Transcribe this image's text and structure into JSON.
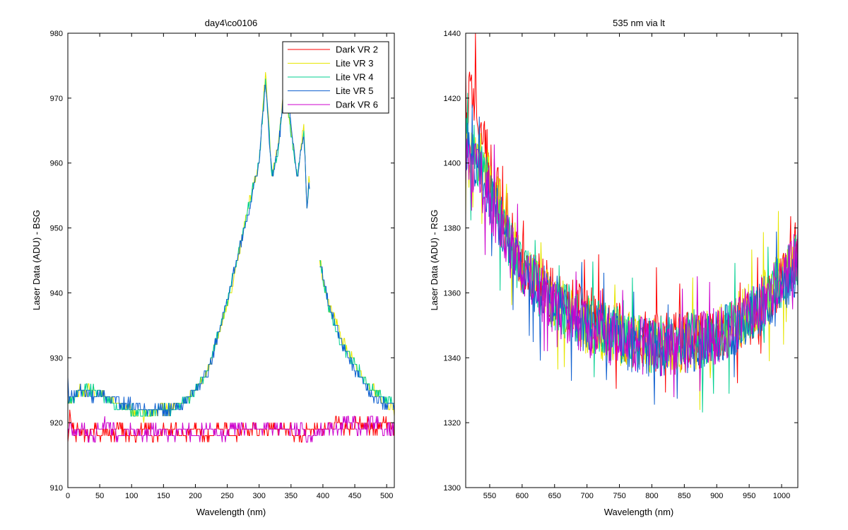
{
  "figure": {
    "background": "#ffffff"
  },
  "chart_data": [
    {
      "type": "line",
      "title": "day4\\co0106",
      "xlabel": "Wavelength (nm)",
      "ylabel": "Laser Data (ADU) - BSG",
      "xlim": [
        0,
        512
      ],
      "ylim": [
        910,
        980
      ],
      "xticks": [
        0,
        50,
        100,
        150,
        200,
        250,
        300,
        350,
        400,
        450,
        500
      ],
      "yticks": [
        910,
        920,
        930,
        940,
        950,
        960,
        970,
        980
      ],
      "grid": false,
      "legend": {
        "position": "top-right"
      },
      "series": [
        {
          "name": "Dark VR 2",
          "color": "#ff0000",
          "kind": "dark",
          "values": [
            [
              0,
              917
            ],
            [
              3,
              921
            ],
            [
              6,
              919
            ],
            [
              8,
              920
            ],
            [
              10,
              918
            ],
            [
              20,
              919
            ],
            [
              30,
              918
            ],
            [
              40,
              919
            ],
            [
              50,
              918
            ],
            [
              60,
              919
            ],
            [
              70,
              918
            ],
            [
              80,
              919
            ],
            [
              100,
              918
            ],
            [
              120,
              919
            ],
            [
              140,
              918
            ],
            [
              160,
              919
            ],
            [
              180,
              918
            ],
            [
              200,
              919
            ],
            [
              220,
              918
            ],
            [
              240,
              919
            ],
            [
              260,
              918
            ],
            [
              280,
              919
            ],
            [
              300,
              919
            ],
            [
              320,
              919
            ],
            [
              340,
              919
            ],
            [
              360,
              918
            ],
            [
              380,
              919
            ],
            [
              400,
              919
            ],
            [
              420,
              920
            ],
            [
              440,
              919
            ],
            [
              460,
              920
            ],
            [
              480,
              919
            ],
            [
              500,
              920
            ],
            [
              512,
              919
            ]
          ]
        },
        {
          "name": "Lite VR 3",
          "color": "#e6e600",
          "kind": "lite",
          "values": [
            [
              0,
              923
            ],
            [
              10,
              924
            ],
            [
              20,
              925
            ],
            [
              40,
              925
            ],
            [
              60,
              924
            ],
            [
              80,
              923
            ],
            [
              100,
              922
            ],
            [
              120,
              921
            ],
            [
              140,
              922
            ],
            [
              160,
              922
            ],
            [
              180,
              923
            ],
            [
              200,
              925
            ],
            [
              220,
              928
            ],
            [
              240,
              935
            ],
            [
              260,
              942
            ],
            [
              280,
              952
            ],
            [
              300,
              960
            ],
            [
              310,
              974
            ],
            [
              320,
              958
            ],
            [
              330,
              963
            ],
            [
              340,
              972
            ],
            [
              350,
              965
            ],
            [
              360,
              958
            ],
            [
              370,
              966
            ],
            [
              375,
              953
            ],
            [
              378,
              957
            ],
            [
              395,
              945
            ],
            [
              410,
              938
            ],
            [
              430,
              933
            ],
            [
              450,
              929
            ],
            [
              470,
              926
            ],
            [
              490,
              924
            ],
            [
              512,
              922
            ]
          ]
        },
        {
          "name": "Lite VR 4",
          "color": "#00d090",
          "kind": "lite",
          "values": [
            [
              0,
              923
            ],
            [
              10,
              924
            ],
            [
              20,
              925
            ],
            [
              40,
              925
            ],
            [
              60,
              924
            ],
            [
              80,
              922
            ],
            [
              100,
              922
            ],
            [
              120,
              921
            ],
            [
              140,
              922
            ],
            [
              160,
              922
            ],
            [
              180,
              923
            ],
            [
              200,
              925
            ],
            [
              220,
              928
            ],
            [
              240,
              935
            ],
            [
              260,
              943
            ],
            [
              280,
              952
            ],
            [
              300,
              960
            ],
            [
              310,
              973
            ],
            [
              320,
              958
            ],
            [
              330,
              962
            ],
            [
              340,
              972
            ],
            [
              350,
              965
            ],
            [
              360,
              958
            ],
            [
              370,
              965
            ],
            [
              375,
              953
            ],
            [
              378,
              957
            ],
            [
              395,
              945
            ],
            [
              410,
              937
            ],
            [
              430,
              932
            ],
            [
              450,
              929
            ],
            [
              470,
              926
            ],
            [
              490,
              924
            ],
            [
              512,
              923
            ]
          ]
        },
        {
          "name": "Lite VR 5",
          "color": "#1060d0",
          "kind": "lite",
          "values": [
            [
              0,
              927
            ],
            [
              2,
              924
            ],
            [
              10,
              924
            ],
            [
              20,
              925
            ],
            [
              40,
              924
            ],
            [
              60,
              924
            ],
            [
              80,
              923
            ],
            [
              100,
              923
            ],
            [
              120,
              922
            ],
            [
              140,
              922
            ],
            [
              160,
              922
            ],
            [
              180,
              923
            ],
            [
              200,
              925
            ],
            [
              220,
              928
            ],
            [
              240,
              935
            ],
            [
              260,
              943
            ],
            [
              280,
              951
            ],
            [
              300,
              960
            ],
            [
              310,
              973
            ],
            [
              320,
              958
            ],
            [
              330,
              962
            ],
            [
              340,
              972
            ],
            [
              350,
              966
            ],
            [
              360,
              958
            ],
            [
              370,
              965
            ],
            [
              375,
              953
            ],
            [
              378,
              957
            ],
            [
              395,
              945
            ],
            [
              410,
              938
            ],
            [
              430,
              932
            ],
            [
              450,
              928
            ],
            [
              470,
              925
            ],
            [
              490,
              923
            ],
            [
              512,
              923
            ]
          ]
        },
        {
          "name": "Dark VR 6",
          "color": "#cc00cc",
          "kind": "dark",
          "values": [
            [
              0,
              918
            ],
            [
              3,
              920
            ],
            [
              6,
              919
            ],
            [
              10,
              918
            ],
            [
              20,
              919
            ],
            [
              40,
              918
            ],
            [
              60,
              920
            ],
            [
              80,
              918
            ],
            [
              100,
              919
            ],
            [
              120,
              918
            ],
            [
              140,
              919
            ],
            [
              160,
              918
            ],
            [
              180,
              919
            ],
            [
              200,
              918
            ],
            [
              220,
              919
            ],
            [
              240,
              918
            ],
            [
              260,
              919
            ],
            [
              280,
              919
            ],
            [
              300,
              919
            ],
            [
              320,
              919
            ],
            [
              340,
              919
            ],
            [
              360,
              919
            ],
            [
              380,
              918
            ],
            [
              400,
              919
            ],
            [
              420,
              919
            ],
            [
              440,
              920
            ],
            [
              460,
              919
            ],
            [
              480,
              920
            ],
            [
              500,
              919
            ],
            [
              512,
              919
            ]
          ]
        }
      ]
    },
    {
      "type": "line",
      "title": "535 nm via lt",
      "xlabel": "Wavelength (nm)",
      "ylabel": "Laser Data (ADU) - RSG",
      "xlim": [
        513,
        1025
      ],
      "ylim": [
        1300,
        1440
      ],
      "xticks": [
        550,
        600,
        650,
        700,
        750,
        800,
        850,
        900,
        950,
        1000
      ],
      "yticks": [
        1300,
        1320,
        1340,
        1360,
        1380,
        1400,
        1420,
        1440
      ],
      "grid": false,
      "legend": "none",
      "series": [
        {
          "color": "#ff0000",
          "values": [
            [
              513,
              1420
            ],
            [
              530,
              1418
            ],
            [
              550,
              1398
            ],
            [
              580,
              1380
            ],
            [
              600,
              1370
            ],
            [
              650,
              1360
            ],
            [
              700,
              1352
            ],
            [
              750,
              1348
            ],
            [
              800,
              1345
            ],
            [
              850,
              1345
            ],
            [
              900,
              1346
            ],
            [
              950,
              1352
            ],
            [
              1000,
              1363
            ],
            [
              1025,
              1375
            ]
          ]
        },
        {
          "color": "#e6e600",
          "values": [
            [
              513,
              1405
            ],
            [
              530,
              1404
            ],
            [
              550,
              1395
            ],
            [
              580,
              1378
            ],
            [
              600,
              1368
            ],
            [
              650,
              1357
            ],
            [
              700,
              1350
            ],
            [
              750,
              1346
            ],
            [
              800,
              1344
            ],
            [
              850,
              1344
            ],
            [
              900,
              1347
            ],
            [
              950,
              1354
            ],
            [
              1000,
              1365
            ],
            [
              1025,
              1372
            ]
          ]
        },
        {
          "color": "#00d090",
          "values": [
            [
              513,
              1408
            ],
            [
              530,
              1402
            ],
            [
              550,
              1392
            ],
            [
              580,
              1376
            ],
            [
              600,
              1366
            ],
            [
              650,
              1356
            ],
            [
              700,
              1351
            ],
            [
              750,
              1347
            ],
            [
              800,
              1344
            ],
            [
              850,
              1345
            ],
            [
              900,
              1346
            ],
            [
              950,
              1353
            ],
            [
              1000,
              1364
            ],
            [
              1025,
              1370
            ]
          ]
        },
        {
          "color": "#1060d0",
          "values": [
            [
              513,
              1403
            ],
            [
              530,
              1400
            ],
            [
              550,
              1390
            ],
            [
              580,
              1375
            ],
            [
              600,
              1366
            ],
            [
              650,
              1357
            ],
            [
              700,
              1350
            ],
            [
              750,
              1345
            ],
            [
              800,
              1343
            ],
            [
              850,
              1344
            ],
            [
              900,
              1346
            ],
            [
              950,
              1352
            ],
            [
              1000,
              1362
            ],
            [
              1025,
              1369
            ]
          ]
        },
        {
          "color": "#cc00cc",
          "values": [
            [
              513,
              1400
            ],
            [
              530,
              1398
            ],
            [
              550,
              1388
            ],
            [
              580,
              1374
            ],
            [
              600,
              1365
            ],
            [
              650,
              1356
            ],
            [
              700,
              1349
            ],
            [
              750,
              1345
            ],
            [
              800,
              1343
            ],
            [
              850,
              1344
            ],
            [
              900,
              1347
            ],
            [
              950,
              1353
            ],
            [
              1000,
              1364
            ],
            [
              1025,
              1372
            ]
          ]
        }
      ]
    }
  ]
}
